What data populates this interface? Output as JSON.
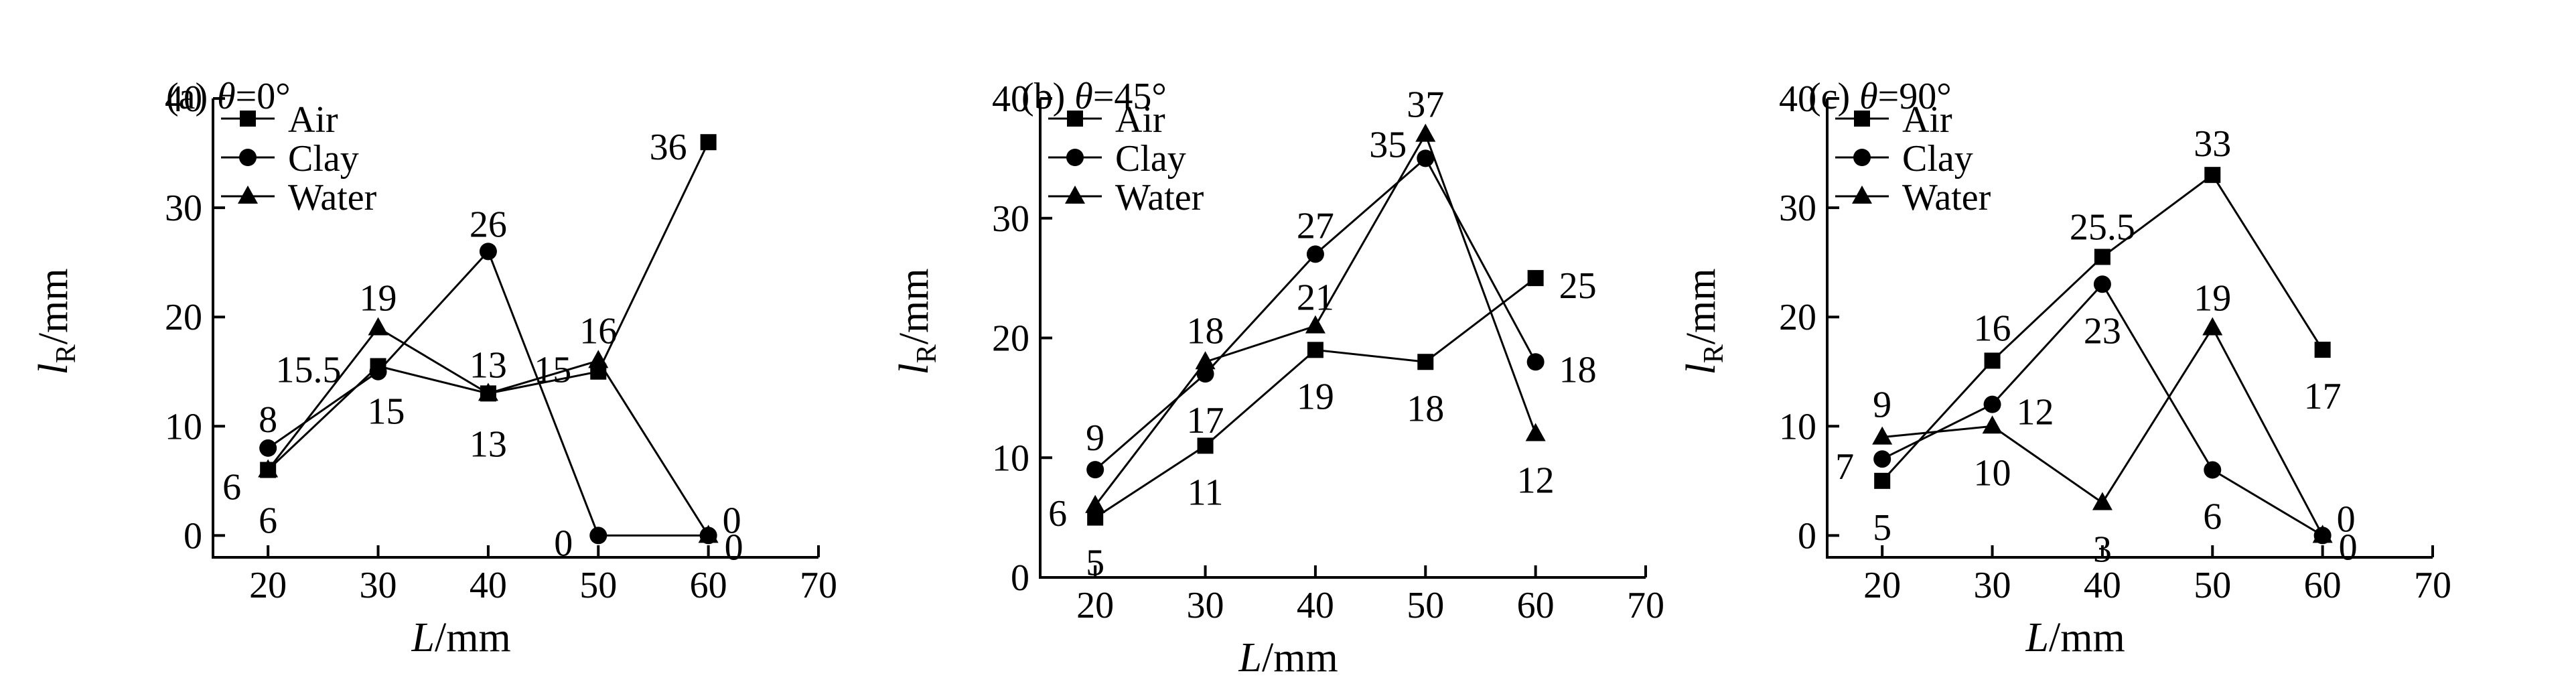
{
  "chart_data": [
    {
      "type": "line",
      "panel": "(a)",
      "theta": "=0°",
      "xlabel_var": "L",
      "xlabel_unit": "/mm",
      "ylabel_var": "l",
      "ylabel_sub": "R",
      "ylabel_unit": "/mm",
      "xlim": [
        15,
        70
      ],
      "ylim": [
        -2,
        40
      ],
      "xticks": [
        20,
        30,
        40,
        50,
        60,
        70
      ],
      "yticks": [
        0,
        10,
        20,
        30,
        40
      ],
      "grid": false,
      "legend": "top-left",
      "x": [
        20,
        30,
        40,
        50,
        60
      ],
      "series": [
        {
          "name": "Air",
          "marker": "square",
          "values": [
            6,
            15.5,
            13,
            15,
            36
          ],
          "labels": [
            "6",
            "15.5",
            "13",
            "15",
            "36"
          ]
        },
        {
          "name": "Clay",
          "marker": "circle",
          "values": [
            8,
            15,
            26,
            0,
            0
          ],
          "labels": [
            "8",
            "15",
            "26",
            "0",
            "0"
          ]
        },
        {
          "name": "Water",
          "marker": "triangle",
          "values": [
            6,
            19,
            13,
            16,
            0
          ],
          "labels": [
            "6",
            "19",
            "13",
            "16",
            "0"
          ]
        }
      ]
    },
    {
      "type": "line",
      "panel": "(b)",
      "theta": "=45°",
      "xlabel_var": "L",
      "xlabel_unit": "/mm",
      "ylabel_var": "l",
      "ylabel_sub": "R",
      "ylabel_unit": "/mm",
      "xlim": [
        15,
        70
      ],
      "ylim": [
        0,
        40
      ],
      "xticks": [
        20,
        30,
        40,
        50,
        60,
        70
      ],
      "yticks": [
        0,
        10,
        20,
        30,
        40
      ],
      "grid": false,
      "legend": "top-left",
      "x": [
        20,
        30,
        40,
        50,
        60
      ],
      "series": [
        {
          "name": "Air",
          "marker": "square",
          "values": [
            5,
            11,
            19,
            18,
            25
          ],
          "labels": [
            "5",
            "11",
            "19",
            "18",
            "25"
          ]
        },
        {
          "name": "Clay",
          "marker": "circle",
          "values": [
            9,
            17,
            27,
            35,
            18
          ],
          "labels": [
            "9",
            "17",
            "27",
            "35",
            "18"
          ]
        },
        {
          "name": "Water",
          "marker": "triangle",
          "values": [
            6,
            18,
            21,
            37,
            12
          ],
          "labels": [
            "6",
            "18",
            "21",
            "37",
            "12"
          ]
        }
      ]
    },
    {
      "type": "line",
      "panel": "(c)",
      "theta": "=90°",
      "xlabel_var": "L",
      "xlabel_unit": "/mm",
      "ylabel_var": "l",
      "ylabel_sub": "R",
      "ylabel_unit": "/mm",
      "xlim": [
        15,
        70
      ],
      "ylim": [
        -2,
        40
      ],
      "xticks": [
        20,
        30,
        40,
        50,
        60,
        70
      ],
      "yticks": [
        0,
        10,
        20,
        30,
        40
      ],
      "grid": false,
      "legend": "top-left",
      "x": [
        20,
        30,
        40,
        50,
        60
      ],
      "series": [
        {
          "name": "Air",
          "marker": "square",
          "values": [
            5,
            16,
            25.5,
            33,
            17
          ],
          "labels": [
            "5",
            "16",
            "25.5",
            "33",
            "17"
          ]
        },
        {
          "name": "Clay",
          "marker": "circle",
          "values": [
            7,
            12,
            23,
            6,
            0
          ],
          "labels": [
            "7",
            "12",
            "23",
            "6",
            "0"
          ]
        },
        {
          "name": "Water",
          "marker": "triangle",
          "values": [
            9,
            10,
            3,
            19,
            0
          ],
          "labels": [
            "9",
            "10",
            "3",
            "19",
            "0"
          ]
        }
      ]
    }
  ]
}
